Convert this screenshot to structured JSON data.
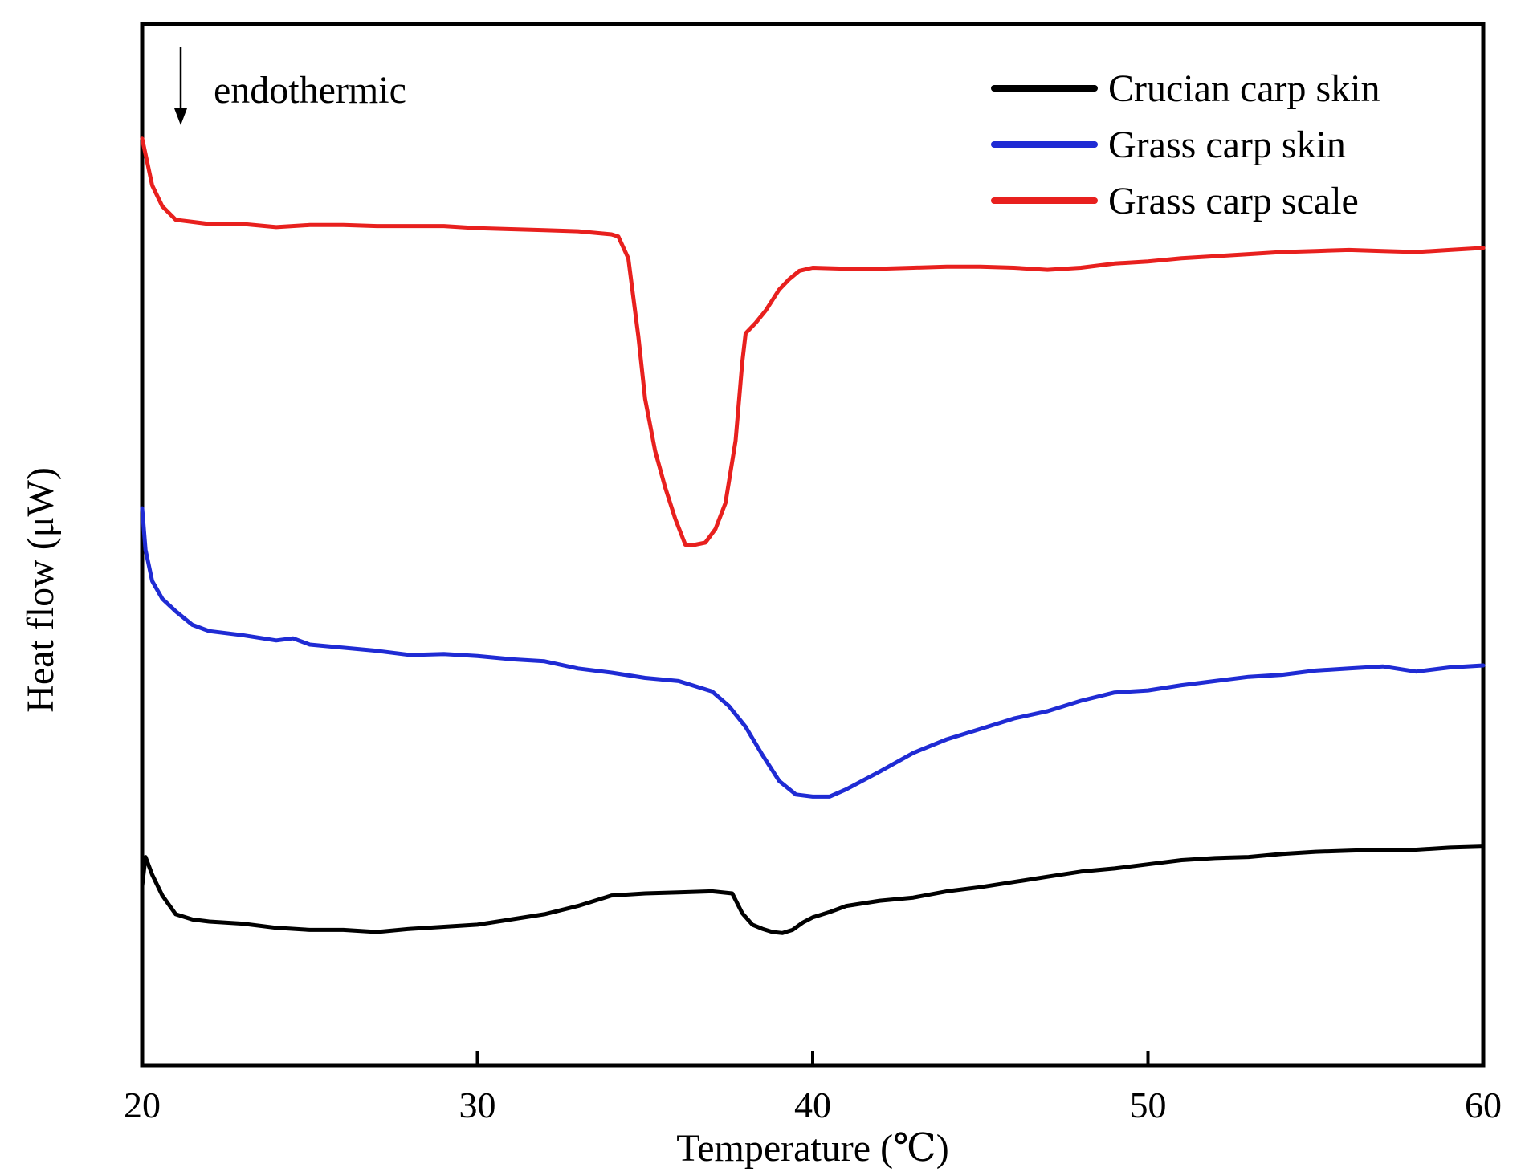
{
  "chart_data": {
    "type": "line",
    "title": "",
    "xlabel": "Temperature (℃)",
    "ylabel": "Heat flow (μW)",
    "xlim": [
      20,
      60
    ],
    "ylim": [
      0,
      100
    ],
    "xticks": [
      20,
      30,
      40,
      50,
      60
    ],
    "yticks": [],
    "grid": false,
    "legend_position": "top-right",
    "annotation": "endothermic",
    "series": [
      {
        "name": "Crucian carp skin",
        "color": "#000000",
        "x": [
          20,
          20.1,
          20.3,
          20.6,
          21,
          21.5,
          22,
          23,
          24,
          25,
          26,
          27,
          28,
          29,
          30,
          31,
          32,
          33,
          34,
          35,
          36,
          37,
          37.6,
          37.9,
          38.2,
          38.5,
          38.8,
          39.1,
          39.4,
          39.7,
          40,
          40.5,
          41,
          42,
          43,
          44,
          45,
          46,
          47,
          48,
          49,
          50,
          51,
          52,
          53,
          54,
          55,
          56,
          57,
          58,
          59,
          60
        ],
        "y": [
          17.2,
          20,
          18.3,
          16.3,
          14.5,
          14,
          13.8,
          13.6,
          13.2,
          13,
          13,
          12.8,
          13.1,
          13.3,
          13.5,
          14,
          14.5,
          15.3,
          16.3,
          16.5,
          16.6,
          16.7,
          16.5,
          14.6,
          13.5,
          13.1,
          12.8,
          12.7,
          13,
          13.7,
          14.2,
          14.7,
          15.3,
          15.8,
          16.1,
          16.7,
          17.1,
          17.6,
          18.1,
          18.6,
          18.9,
          19.3,
          19.7,
          19.9,
          20,
          20.3,
          20.5,
          20.6,
          20.7,
          20.7,
          20.9,
          21
        ]
      },
      {
        "name": "Grass carp skin",
        "color": "#1f2bd4",
        "x": [
          20,
          20.1,
          20.3,
          20.6,
          21,
          21.5,
          22,
          23,
          24,
          24.5,
          25,
          26,
          27,
          28,
          29,
          30,
          31,
          32,
          33,
          34,
          35,
          36,
          37,
          37.5,
          38,
          38.5,
          39,
          39.5,
          40,
          40.5,
          41,
          42,
          43,
          44,
          45,
          46,
          47,
          48,
          49,
          50,
          51,
          52,
          53,
          54,
          55,
          56,
          57,
          58,
          59,
          60
        ],
        "y": [
          53.5,
          49.5,
          46.5,
          44.8,
          43.6,
          42.3,
          41.7,
          41.3,
          40.8,
          41,
          40.4,
          40.1,
          39.8,
          39.4,
          39.5,
          39.3,
          39,
          38.8,
          38.1,
          37.7,
          37.2,
          36.9,
          35.9,
          34.5,
          32.5,
          29.8,
          27.3,
          26,
          25.8,
          25.8,
          26.5,
          28.2,
          30,
          31.3,
          32.3,
          33.3,
          34,
          35,
          35.8,
          36,
          36.5,
          36.9,
          37.3,
          37.5,
          37.9,
          38.1,
          38.3,
          37.8,
          38.2,
          38.4
        ]
      },
      {
        "name": "Grass carp scale",
        "color": "#e8201e",
        "x": [
          20,
          20.1,
          20.3,
          20.6,
          21,
          21.5,
          22,
          23,
          24,
          25,
          26,
          27,
          28,
          29,
          30,
          31,
          32,
          33,
          34,
          34.2,
          34.5,
          34.8,
          35,
          35.3,
          35.6,
          35.9,
          36.2,
          36.5,
          36.8,
          37.1,
          37.4,
          37.7,
          37.9,
          38,
          38.3,
          38.6,
          39,
          39.3,
          39.6,
          40,
          41,
          42,
          43,
          44,
          45,
          46,
          47,
          48,
          49,
          50,
          51,
          52,
          53,
          54,
          55,
          56,
          57,
          58,
          59,
          60
        ],
        "y": [
          89,
          87.5,
          84.5,
          82.5,
          81.2,
          81,
          80.8,
          80.8,
          80.5,
          80.7,
          80.7,
          80.6,
          80.6,
          80.6,
          80.4,
          80.3,
          80.2,
          80.1,
          79.8,
          79.6,
          77.5,
          70,
          64,
          59,
          55.5,
          52.5,
          50,
          50,
          50.2,
          51.5,
          54,
          60,
          67.5,
          70.3,
          71.3,
          72.5,
          74.5,
          75.5,
          76.3,
          76.6,
          76.5,
          76.5,
          76.6,
          76.7,
          76.7,
          76.6,
          76.4,
          76.6,
          77,
          77.2,
          77.5,
          77.7,
          77.9,
          78.1,
          78.2,
          78.3,
          78.2,
          78.1,
          78.3,
          78.5
        ]
      }
    ]
  }
}
